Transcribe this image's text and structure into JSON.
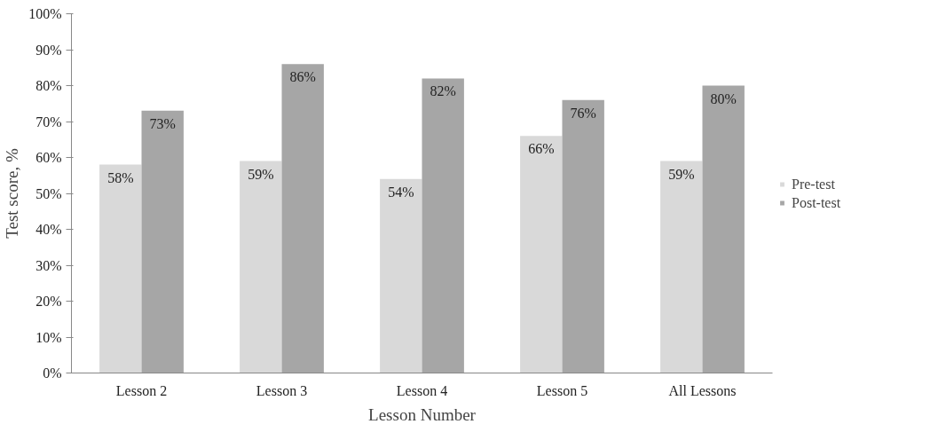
{
  "chart_data": {
    "type": "bar",
    "xlabel": "Lesson Number",
    "ylabel": "Test score, %",
    "categories": [
      "Lesson 2",
      "Lesson 3",
      "Lesson 4",
      "Lesson 5",
      "All Lessons"
    ],
    "series": [
      {
        "name": "Pre-test",
        "color": "#d9d9d9",
        "values": [
          58,
          59,
          54,
          66,
          59
        ],
        "value_labels": [
          "58%",
          "59%",
          "54%",
          "66%",
          "59%"
        ]
      },
      {
        "name": "Post-test",
        "color": "#a6a6a6",
        "values": [
          73,
          86,
          82,
          76,
          80
        ],
        "value_labels": [
          "73%",
          "86%",
          "82%",
          "76%",
          "80%"
        ]
      }
    ],
    "ylim": [
      0,
      100
    ],
    "yticks": [
      {
        "value": 0,
        "label": "0%"
      },
      {
        "value": 10,
        "label": "10%"
      },
      {
        "value": 20,
        "label": "20%"
      },
      {
        "value": 30,
        "label": "30%"
      },
      {
        "value": 40,
        "label": "40%"
      },
      {
        "value": 50,
        "label": "50%"
      },
      {
        "value": 60,
        "label": "60%"
      },
      {
        "value": 70,
        "label": "70%"
      },
      {
        "value": 80,
        "label": "80%"
      },
      {
        "value": 90,
        "label": "90%"
      },
      {
        "value": 100,
        "label": "100%"
      }
    ],
    "grid": false,
    "legend": "right"
  }
}
